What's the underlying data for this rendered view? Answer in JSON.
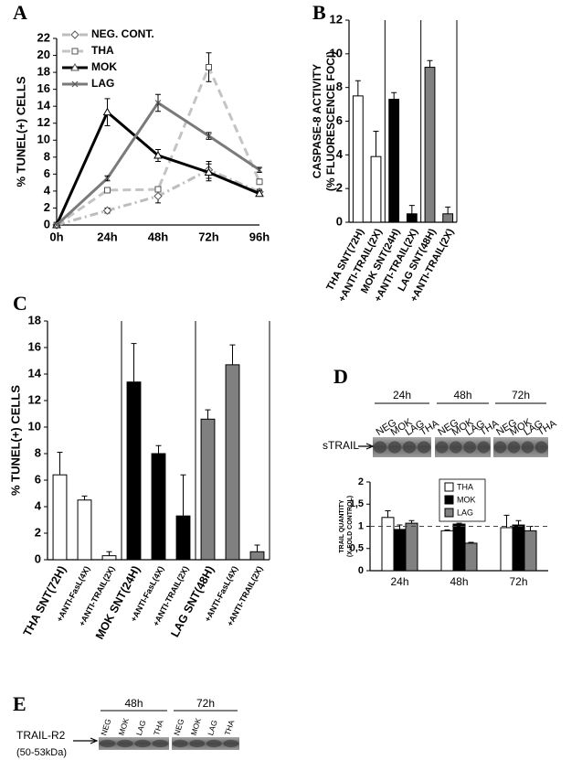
{
  "chart_data": [
    {
      "type": "line",
      "panel": "A",
      "ylabel": "% TUNEL(+) CELLS",
      "categories": [
        "0h",
        "24h",
        "48h",
        "72h",
        "96h"
      ],
      "ylim": [
        0,
        22
      ],
      "yticks": [
        0,
        2,
        4,
        6,
        8,
        10,
        12,
        14,
        16,
        18,
        20,
        22
      ],
      "legend": "upper left",
      "series": [
        {
          "name": "NEG. CONT.",
          "color": "#bdbdbd",
          "line_style": "dashdot",
          "marker": "diamond",
          "values": [
            0,
            1.7,
            3.4,
            6.5,
            3.9
          ],
          "errors": [
            0,
            0.3,
            0.8,
            1.0,
            0.3
          ]
        },
        {
          "name": "THA",
          "color": "#c4c4c4",
          "line_style": "dashed",
          "marker": "square",
          "values": [
            0,
            4.1,
            4.2,
            18.6,
            5.1
          ],
          "errors": [
            0,
            0.3,
            0.3,
            1.7,
            0.3
          ]
        },
        {
          "name": "MOK",
          "color": "#000000",
          "line_style": "solid",
          "marker": "triangle",
          "values": [
            0,
            13.3,
            8.2,
            6.2,
            3.7
          ],
          "errors": [
            0,
            1.6,
            0.7,
            1.0,
            0.3
          ]
        },
        {
          "name": "LAG",
          "color": "#7a7a7a",
          "line_style": "solid",
          "marker": "x",
          "values": [
            0,
            5.5,
            14.4,
            10.5,
            6.5
          ],
          "errors": [
            0,
            0.3,
            1.0,
            0.4,
            0.3
          ]
        }
      ]
    },
    {
      "type": "bar",
      "panel": "B",
      "ylabel": [
        "CASPASE-8 ACTIVITY",
        "(% FLUORESCENCE FOCI)"
      ],
      "categories": [
        "THA SNT(72H)",
        "+ANTI-TRAIL(2X)",
        "MOK SNT(24H)",
        "+ANTI-TRAIL(2X)",
        "LAG SNT(48H)",
        "+ANTI-TRAIL(2X)"
      ],
      "values": [
        7.5,
        3.9,
        7.3,
        0.5,
        9.2,
        0.5
      ],
      "errors": [
        0.9,
        1.5,
        0.4,
        0.5,
        0.4,
        0.4
      ],
      "colors": [
        "#ffffff",
        "#ffffff",
        "#000000",
        "#000000",
        "#808080",
        "#808080"
      ],
      "ylim": [
        0,
        12
      ],
      "yticks": [
        0,
        2,
        4,
        6,
        8,
        10,
        12
      ]
    },
    {
      "type": "bar",
      "panel": "C",
      "ylabel": "% TUNEL(+) CELLS",
      "categories": [
        "THA SNT(72H)",
        "+ANTI-FasL(4X)",
        "+ANTI-TRAIL(2X)",
        "MOK SNT(24H)",
        "+ANTI-FasL(4X)",
        "+ANTI-TRAIL(2X)",
        "LAG SNT(48H)",
        "+ANTI-FasL(4X)",
        "+ANTI-TRAIL(2X)"
      ],
      "values": [
        6.4,
        4.5,
        0.3,
        13.4,
        8.0,
        3.3,
        10.6,
        14.7,
        0.6
      ],
      "errors": [
        1.7,
        0.3,
        0.3,
        2.9,
        0.6,
        3.1,
        0.7,
        1.5,
        0.5
      ],
      "colors": [
        "#ffffff",
        "#ffffff",
        "#ffffff",
        "#000000",
        "#000000",
        "#000000",
        "#808080",
        "#808080",
        "#808080"
      ],
      "ylim": [
        0,
        18
      ],
      "yticks": [
        0,
        2,
        4,
        6,
        8,
        10,
        12,
        14,
        16,
        18
      ]
    },
    {
      "type": "grouped_bar",
      "panel": "D",
      "ylabel": [
        "TRAIL QUANTITY",
        "(X-FOLD CONTROL)"
      ],
      "categories": [
        "24h",
        "48h",
        "72h"
      ],
      "series": [
        {
          "name": "THA",
          "color": "#ffffff",
          "values": [
            1.2,
            0.9,
            0.97
          ],
          "errors": [
            0.15,
            0.02,
            0.28
          ]
        },
        {
          "name": "MOK",
          "color": "#000000",
          "values": [
            0.93,
            1.05,
            1.03
          ],
          "errors": [
            0.1,
            0.02,
            0.1
          ]
        },
        {
          "name": "LAG",
          "color": "#808080",
          "values": [
            1.07,
            0.62,
            0.9
          ],
          "errors": [
            0.06,
            0.02,
            0.1
          ]
        }
      ],
      "ylim": [
        0,
        2
      ],
      "yticks": [
        0,
        {
          "value": 0.5,
          "label": "0,5"
        },
        1,
        {
          "value": 1.5,
          "label": "1,5"
        },
        2
      ],
      "reference_line": 1,
      "legend": "upper center"
    }
  ],
  "blots": [
    {
      "time_labels": [
        "24h",
        "48h",
        "72h"
      ],
      "lane_labels": [
        "NEG",
        "MOK",
        "LAG",
        "THA",
        "NEG",
        "MOK",
        "LAG",
        "THA",
        "NEG",
        "MOK",
        "LAG",
        "THA"
      ],
      "band_label": "sTRAIL"
    },
    {
      "panel": "E",
      "time_labels": [
        "48h",
        "72h"
      ],
      "lane_labels": [
        "NEG",
        "MOK",
        "LAG",
        "THA",
        "NEG",
        "MOK",
        "LAG",
        "THA"
      ],
      "band_label": "TRAIL-R2",
      "band_sublabel": "(50-53kDa)"
    }
  ]
}
